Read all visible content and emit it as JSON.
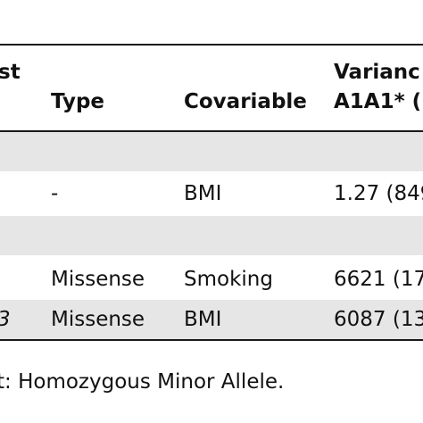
{
  "table": {
    "header": {
      "col0_line1": "st",
      "type": "Type",
      "covariable": "Covariable",
      "col3_line1": "Varianc",
      "col3_line2": "A1A1* ("
    },
    "rows": [
      {
        "col0": "",
        "type": "-",
        "covariable": "BMI",
        "value": "1.27 (849"
      },
      {
        "col0": "",
        "type": "Missense",
        "covariable": "Smoking",
        "value": "6621 (17"
      },
      {
        "col0": "3",
        "type": "Missense",
        "covariable": "BMI",
        "value": "6087 (13"
      }
    ]
  },
  "footnote": "t: Homozygous Minor Allele."
}
